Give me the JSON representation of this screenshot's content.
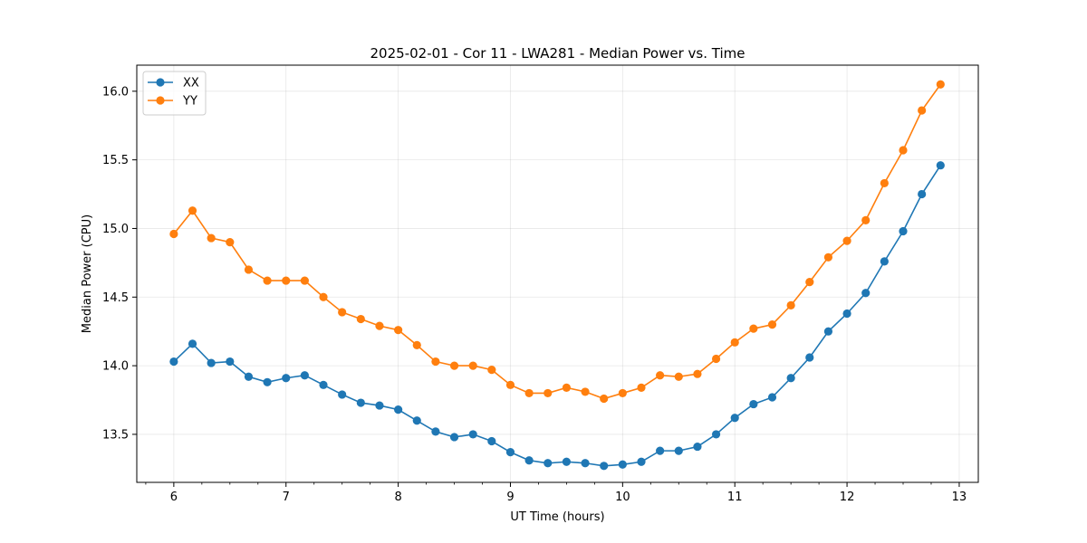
{
  "chart_data": {
    "type": "line",
    "title": "2025-02-01 - Cor 11 - LWA281 - Median Power vs. Time",
    "xlabel": "UT Time (hours)",
    "ylabel": "Median Power (CPU)",
    "xlim": [
      5.67,
      13.17
    ],
    "ylim": [
      13.15,
      16.19
    ],
    "x_ticks": [
      6,
      7,
      8,
      9,
      10,
      11,
      12,
      13
    ],
    "y_ticks": [
      13.5,
      14.0,
      14.5,
      15.0,
      15.5,
      16.0
    ],
    "x_tick_labels": [
      "6",
      "7",
      "8",
      "9",
      "10",
      "11",
      "12",
      "13"
    ],
    "y_tick_labels": [
      "13.5",
      "14.0",
      "14.5",
      "15.0",
      "15.5",
      "16.0"
    ],
    "grid": true,
    "legend_position": "top-left",
    "x": [
      6.0,
      6.1667,
      6.3333,
      6.5,
      6.6667,
      6.8333,
      7.0,
      7.1667,
      7.3333,
      7.5,
      7.6667,
      7.8333,
      8.0,
      8.1667,
      8.3333,
      8.5,
      8.6667,
      8.8333,
      9.0,
      9.1667,
      9.3333,
      9.5,
      9.6667,
      9.8333,
      10.0,
      10.1667,
      10.3333,
      10.5,
      10.6667,
      10.8333,
      11.0,
      11.1667,
      11.3333,
      11.5,
      11.6667,
      11.8333,
      12.0,
      12.1667,
      12.3333,
      12.5,
      12.6667,
      12.8333
    ],
    "series": [
      {
        "name": "XX",
        "color": "#1f77b4",
        "values": [
          14.03,
          14.16,
          14.02,
          14.03,
          13.92,
          13.88,
          13.91,
          13.93,
          13.86,
          13.79,
          13.73,
          13.71,
          13.68,
          13.6,
          13.52,
          13.48,
          13.5,
          13.45,
          13.37,
          13.31,
          13.29,
          13.3,
          13.29,
          13.27,
          13.28,
          13.3,
          13.38,
          13.38,
          13.41,
          13.5,
          13.62,
          13.72,
          13.77,
          13.91,
          14.06,
          14.25,
          14.38,
          14.53,
          14.76,
          14.98,
          15.25,
          15.46
        ]
      },
      {
        "name": "YY",
        "color": "#ff7f0e",
        "values": [
          14.96,
          15.13,
          14.93,
          14.9,
          14.7,
          14.62,
          14.62,
          14.62,
          14.5,
          14.39,
          14.34,
          14.29,
          14.26,
          14.15,
          14.03,
          14.0,
          14.0,
          13.97,
          13.86,
          13.8,
          13.8,
          13.84,
          13.81,
          13.76,
          13.8,
          13.84,
          13.93,
          13.92,
          13.94,
          14.05,
          14.17,
          14.27,
          14.3,
          14.44,
          14.61,
          14.79,
          14.91,
          15.06,
          15.33,
          15.57,
          15.86,
          16.05
        ]
      }
    ]
  }
}
